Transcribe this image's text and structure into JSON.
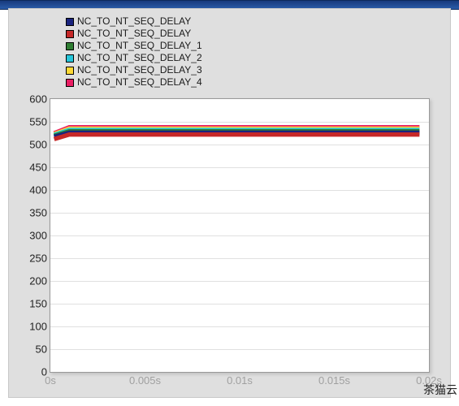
{
  "legend": {
    "items": [
      {
        "label": "NC_TO_NT_SEQ_DELAY",
        "color": "#1a237e"
      },
      {
        "label": "NC_TO_NT_SEQ_DELAY",
        "color": "#c62828"
      },
      {
        "label": "NC_TO_NT_SEQ_DELAY_1",
        "color": "#2e7d32"
      },
      {
        "label": "NC_TO_NT_SEQ_DELAY_2",
        "color": "#26c6da"
      },
      {
        "label": "NC_TO_NT_SEQ_DELAY_3",
        "color": "#fdd835"
      },
      {
        "label": "NC_TO_NT_SEQ_DELAY_4",
        "color": "#e91e63"
      }
    ],
    "fontsize": 12,
    "text_color": "#1a1a1a",
    "swatch_border": "#000000"
  },
  "chart": {
    "type": "line",
    "background_color": "#ffffff",
    "panel_background": "#dfdfdf",
    "grid_color": "#e0e0e0",
    "axis_color": "#999999",
    "ylim": [
      0,
      600
    ],
    "ytick_step": 50,
    "yticks": [
      0,
      50,
      100,
      150,
      200,
      250,
      300,
      350,
      400,
      450,
      500,
      550,
      600
    ],
    "ytick_fontsize": 13,
    "xlim": [
      0,
      0.02
    ],
    "xticks": [
      {
        "value": 0.0,
        "label": "0s"
      },
      {
        "value": 0.005,
        "label": "0.005s"
      },
      {
        "value": 0.01,
        "label": "0.01s"
      },
      {
        "value": 0.015,
        "label": "0.015s"
      },
      {
        "value": 0.02,
        "label": "0.02s"
      }
    ],
    "xtick_fontsize": 13,
    "xtick_color": "#a0a0a0",
    "line_width": 1.8,
    "series": [
      {
        "name": "NC_TO_NT_SEQ_DELAY_4",
        "color": "#e91e63",
        "y_start": 525,
        "y_value": 538,
        "x_start": 0.0002,
        "x_end": 0.0195
      },
      {
        "name": "NC_TO_NT_SEQ_DELAY_3",
        "color": "#fdd835",
        "y_start": 523,
        "y_value": 535,
        "x_start": 0.0002,
        "x_end": 0.0195
      },
      {
        "name": "NC_TO_NT_SEQ_DELAY_2",
        "color": "#26c6da",
        "y_start": 521,
        "y_value": 532,
        "x_start": 0.0002,
        "x_end": 0.0195
      },
      {
        "name": "NC_TO_NT_SEQ_DELAY_1",
        "color": "#2e7d32",
        "y_start": 519,
        "y_value": 529,
        "x_start": 0.0002,
        "x_end": 0.0195
      },
      {
        "name": "NC_TO_NT_SEQ_DELAY",
        "color": "#1a237e",
        "y_start": 517,
        "y_value": 526,
        "x_start": 0.0002,
        "x_end": 0.0195
      },
      {
        "name": "NC_TO_NT_SEQ_DELAY",
        "color": "#c62828",
        "y_start": 512,
        "y_value": 522,
        "x_start": 0.0002,
        "x_end": 0.0195
      }
    ]
  },
  "watermark": "茶猫云"
}
